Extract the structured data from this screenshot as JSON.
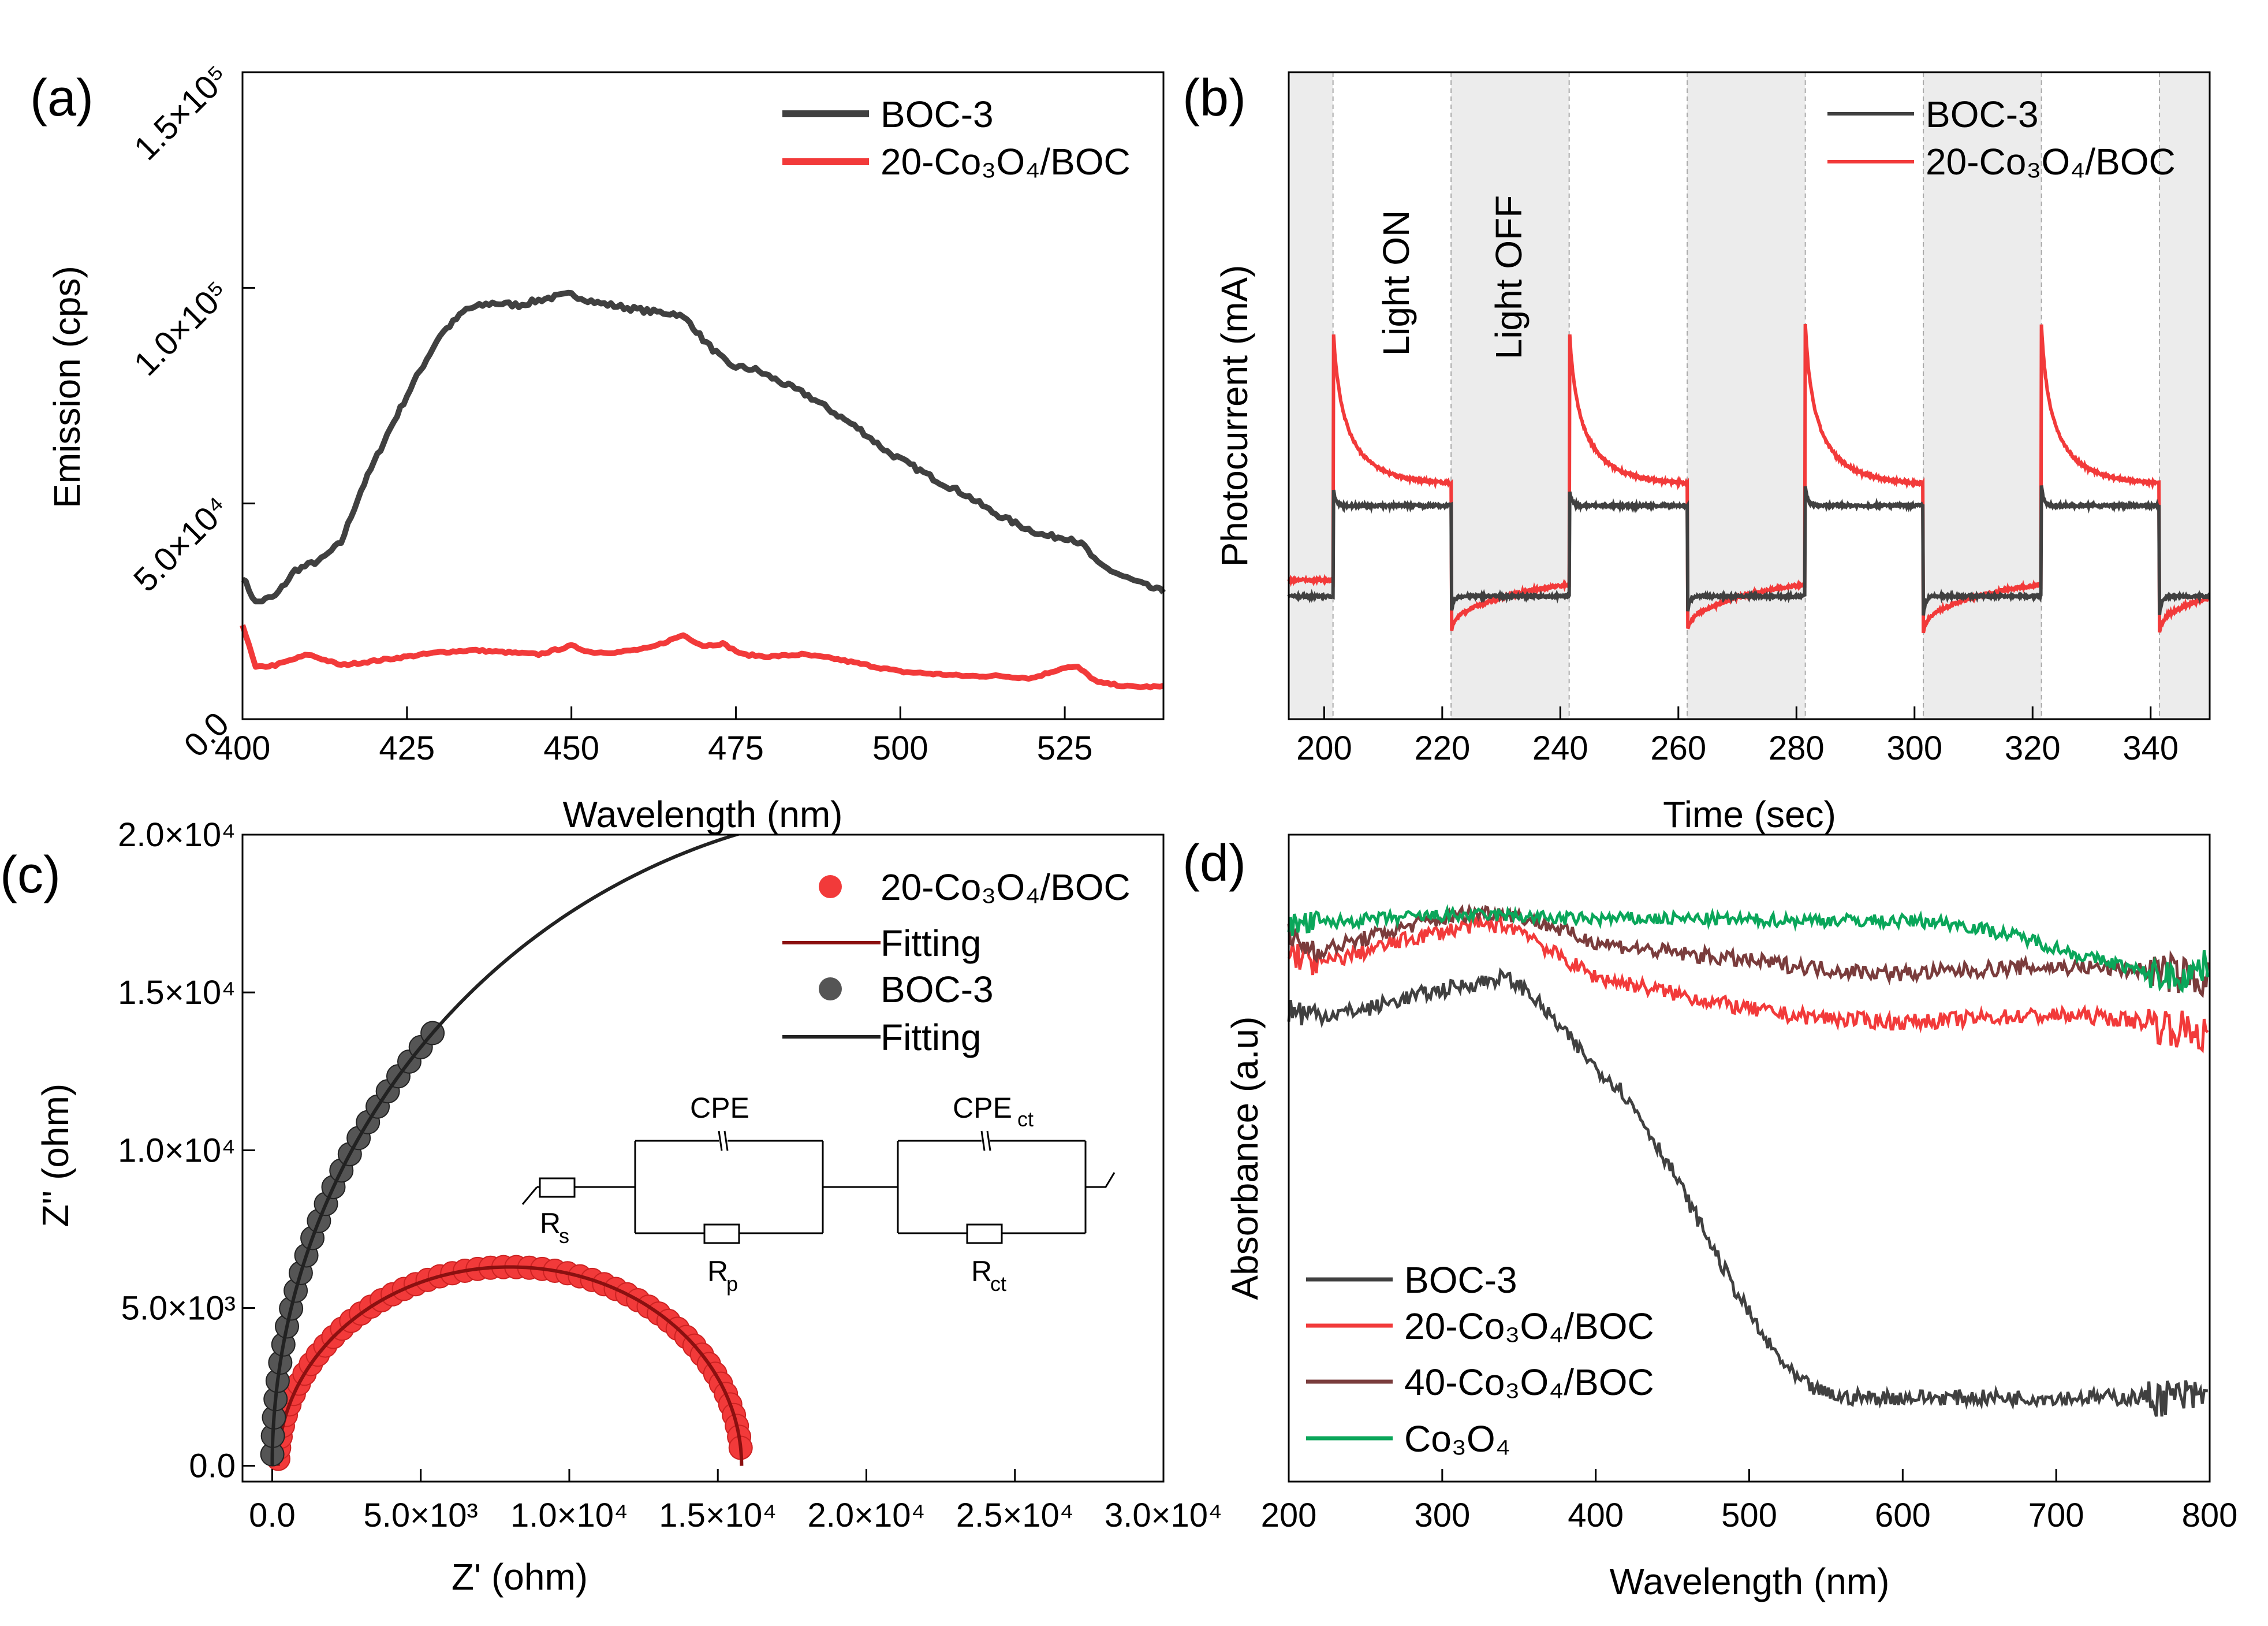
{
  "colors": {
    "boc3": "#404040",
    "co20": "#f23a3a",
    "co40": "#7a3c3c",
    "co3o4": "#0aa65a",
    "fitRed": "#8b1010",
    "fitBlack": "#222222",
    "shade": "#ececec"
  },
  "chart_data": [
    {
      "panel": "(a)",
      "type": "line",
      "xlabel": "Wavelength (nm)",
      "ylabel": "Emission (cps)",
      "xlim": [
        400,
        540
      ],
      "ylim": [
        0,
        150000
      ],
      "xticks": [
        "400",
        "425",
        "450",
        "475",
        "500",
        "525"
      ],
      "yticks": [
        "0.0",
        "5.0×10⁴",
        "1.0×10⁵",
        "1.5×10⁵"
      ],
      "series": [
        {
          "name": "BOC-3",
          "color": "#404040",
          "x": [
            400,
            402,
            405,
            408,
            412,
            415,
            418,
            422,
            426,
            430,
            434,
            438,
            442,
            446,
            450,
            454,
            458,
            462,
            466,
            468,
            470,
            474,
            478,
            482,
            486,
            490,
            494,
            498,
            502,
            506,
            510,
            514,
            518,
            522,
            526,
            528,
            530,
            534,
            538,
            540
          ],
          "y": [
            33000,
            27000,
            28500,
            34500,
            37000,
            41000,
            53000,
            66000,
            78000,
            89000,
            95000,
            96500,
            96000,
            97500,
            98500,
            96500,
            95500,
            94500,
            94000,
            92000,
            88000,
            82000,
            81000,
            78000,
            75000,
            71000,
            67000,
            62000,
            58500,
            55000,
            52000,
            48000,
            45000,
            42500,
            42000,
            40000,
            36000,
            33000,
            30500,
            29500
          ]
        },
        {
          "name": "20-Co₃O₄/BOC",
          "color": "#f23a3a",
          "x": [
            400,
            402,
            405,
            408,
            410,
            412,
            415,
            420,
            425,
            430,
            435,
            440,
            445,
            450,
            453,
            457,
            462,
            467,
            470,
            473,
            476,
            480,
            485,
            490,
            495,
            500,
            505,
            510,
            515,
            520,
            525,
            527,
            530,
            535,
            540
          ],
          "y": [
            22000,
            12000,
            12500,
            14000,
            15000,
            14000,
            12500,
            13500,
            14500,
            15500,
            16000,
            15500,
            15000,
            17000,
            15500,
            15500,
            16500,
            19500,
            17000,
            17500,
            15000,
            14500,
            15000,
            14000,
            12500,
            11000,
            10500,
            10000,
            10000,
            9500,
            12000,
            12000,
            8500,
            7500,
            7500
          ]
        }
      ],
      "legend": [
        "BOC-3",
        "20-Co₃O₄/BOC"
      ]
    },
    {
      "panel": "(b)",
      "type": "line",
      "xlabel": "Time (sec)",
      "ylabel": "Photocurrent (mA)",
      "xlim": [
        194,
        350
      ],
      "xticks": [
        "200",
        "220",
        "240",
        "260",
        "280",
        "300",
        "320",
        "340"
      ],
      "annotations": [
        "Light ON",
        "Light OFF"
      ],
      "light_off_intervals": [
        [
          194,
          201.5
        ],
        [
          221.5,
          241.5
        ],
        [
          261.5,
          281.5
        ],
        [
          301.5,
          321.5
        ],
        [
          341.5,
          350
        ]
      ],
      "legend": [
        "BOC-3",
        "20-Co₃O₄/BOC"
      ]
    },
    {
      "panel": "(c)",
      "type": "scatter",
      "xlabel": "Z' (ohm)",
      "ylabel": "Z'' (ohm)",
      "xlim": [
        -1000,
        30000
      ],
      "ylim": [
        -500,
        20000
      ],
      "xticks": [
        "0.0",
        "5.0×10³",
        "1.0×10⁴",
        "1.5×10⁴",
        "2.0×10⁴",
        "2.5×10⁴",
        "3.0×10⁴"
      ],
      "yticks": [
        "0.0",
        "5.0×10³",
        "1.0×10⁴",
        "1.5×10⁴",
        "2.0×10⁴"
      ],
      "series": [
        {
          "name": "20-Co₃O₄/BOC",
          "marker": "circle",
          "color": "#f23a3a",
          "arc_center": 8000,
          "arc_radius": 7800,
          "arc_height": 6300
        },
        {
          "name": "BOC-3",
          "marker": "circle",
          "color": "#404040",
          "arc_center": 22000,
          "arc_radius": 22000
        }
      ],
      "legend": [
        "20-Co₃O₄/BOC",
        "Fitting",
        "BOC-3",
        "Fitting"
      ],
      "circuit_labels": [
        "CPE",
        "CPE",
        "ct",
        "R",
        "s",
        "R",
        "p",
        "R",
        "ct"
      ]
    },
    {
      "panel": "(d)",
      "type": "line",
      "xlabel": "Wavelength (nm)",
      "ylabel": "Absorbance (a.u)",
      "xlim": [
        200,
        800
      ],
      "xticks": [
        "200",
        "300",
        "400",
        "500",
        "600",
        "700",
        "800"
      ],
      "series": [
        {
          "name": "BOC-3",
          "color": "#404040",
          "x": [
            200,
            220,
            250,
            280,
            300,
            320,
            340,
            355,
            370,
            385,
            400,
            415,
            430,
            450,
            470,
            490,
            510,
            530,
            545,
            560,
            600,
            650,
            700,
            750,
            790,
            800
          ],
          "y": [
            0.73,
            0.72,
            0.73,
            0.75,
            0.76,
            0.77,
            0.78,
            0.76,
            0.72,
            0.68,
            0.64,
            0.61,
            0.56,
            0.48,
            0.39,
            0.3,
            0.22,
            0.16,
            0.14,
            0.13,
            0.13,
            0.13,
            0.13,
            0.13,
            0.13,
            0.13
          ]
        },
        {
          "name": "20-Co₃O₄/BOC",
          "color": "#f23a3a",
          "x": [
            200,
            220,
            250,
            280,
            300,
            320,
            340,
            355,
            370,
            385,
            400,
            420,
            440,
            460,
            480,
            500,
            530,
            560,
            600,
            640,
            680,
            720,
            760,
            800
          ],
          "y": [
            0.82,
            0.8,
            0.82,
            0.84,
            0.85,
            0.86,
            0.86,
            0.85,
            0.82,
            0.8,
            0.78,
            0.77,
            0.76,
            0.75,
            0.74,
            0.73,
            0.72,
            0.715,
            0.71,
            0.715,
            0.72,
            0.72,
            0.71,
            0.69
          ]
        },
        {
          "name": "40-Co₃O₄/BOC",
          "color": "#7a3c3c",
          "x": [
            200,
            220,
            250,
            280,
            300,
            320,
            340,
            355,
            370,
            390,
            410,
            440,
            480,
            520,
            560,
            600,
            640,
            680,
            720,
            760,
            790,
            800
          ],
          "y": [
            0.84,
            0.82,
            0.84,
            0.86,
            0.87,
            0.88,
            0.88,
            0.87,
            0.86,
            0.84,
            0.83,
            0.82,
            0.81,
            0.8,
            0.79,
            0.785,
            0.79,
            0.795,
            0.795,
            0.79,
            0.78,
            0.775
          ]
        },
        {
          "name": "Co₃O₄",
          "color": "#0aa65a",
          "x": [
            200,
            230,
            260,
            300,
            340,
            380,
            420,
            460,
            500,
            540,
            580,
            620,
            640,
            660,
            680,
            700,
            720,
            740,
            760,
            780,
            800
          ],
          "y": [
            0.86,
            0.865,
            0.87,
            0.875,
            0.875,
            0.87,
            0.87,
            0.87,
            0.868,
            0.868,
            0.867,
            0.866,
            0.86,
            0.85,
            0.84,
            0.825,
            0.81,
            0.8,
            0.785,
            0.78,
            0.8
          ]
        }
      ],
      "legend": [
        "BOC-3",
        "20-Co₃O₄/BOC",
        "40-Co₃O₄/BOC",
        "Co₃O₄"
      ]
    }
  ]
}
